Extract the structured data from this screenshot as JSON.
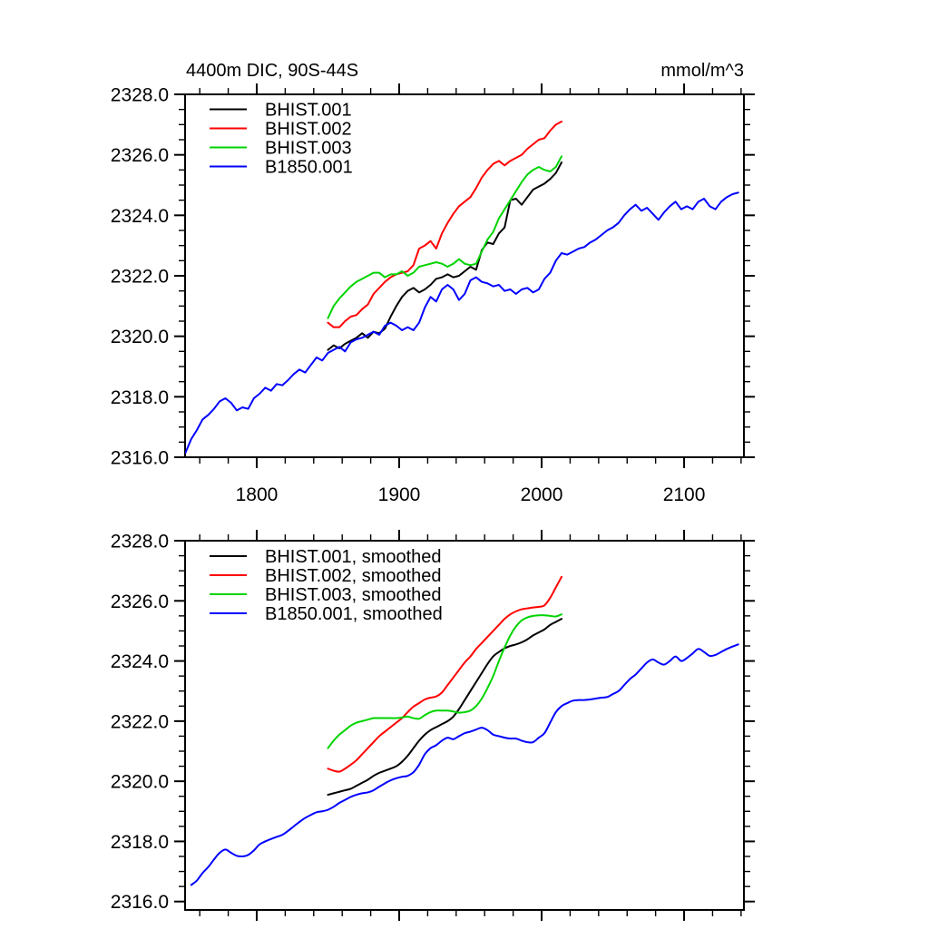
{
  "page": {
    "background": "#ffffff"
  },
  "chart_data": [
    {
      "type": "line",
      "title": "4400m DIC, 90S-44S",
      "units_label": "mmol/m^3",
      "xlim": [
        1749.7,
        2142
      ],
      "ylim": [
        2316,
        2328
      ],
      "x_ticks_major": [
        1800,
        1900,
        2000,
        2100
      ],
      "x_tick_labels": [
        "1800",
        "1900",
        "2000",
        "2100"
      ],
      "x_ticks_minor": [
        1760,
        1780,
        1820,
        1840,
        1860,
        1880,
        1920,
        1940,
        1960,
        1980,
        2020,
        2040,
        2060,
        2080,
        2120,
        2140
      ],
      "y_ticks_major": [
        2316,
        2318,
        2320,
        2322,
        2324,
        2326,
        2328
      ],
      "y_tick_labels": [
        "2316.0",
        "2318.0",
        "2320.0",
        "2322.0",
        "2324.0",
        "2326.0",
        "2328.0"
      ],
      "y_minor_step": 0.5,
      "show_x_labels": true,
      "grid": false,
      "legend_position": "top-left-inside",
      "series": [
        {
          "name": "BHIST.001",
          "color": "#000000",
          "x0": 1850,
          "dx": 4,
          "smooth": false,
          "values": [
            2319.55,
            2319.7,
            2319.6,
            2319.75,
            2319.85,
            2319.95,
            2320.1,
            2319.95,
            2320.15,
            2320.1,
            2320.25,
            2320.65,
            2321.0,
            2321.3,
            2321.5,
            2321.6,
            2321.45,
            2321.55,
            2321.7,
            2321.9,
            2321.95,
            2322.05,
            2321.95,
            2322.0,
            2322.15,
            2322.3,
            2322.2,
            2322.85,
            2323.1,
            2323.05,
            2323.4,
            2323.6,
            2324.5,
            2324.55,
            2324.35,
            2324.6,
            2324.85,
            2324.95,
            2325.05,
            2325.2,
            2325.4,
            2325.75
          ]
        },
        {
          "name": "BHIST.002",
          "color": "#ff0000",
          "x0": 1850,
          "dx": 4,
          "smooth": false,
          "values": [
            2320.45,
            2320.3,
            2320.3,
            2320.5,
            2320.65,
            2320.7,
            2320.9,
            2321.05,
            2321.4,
            2321.6,
            2321.8,
            2321.95,
            2322.05,
            2322.1,
            2322.15,
            2322.35,
            2322.9,
            2323.0,
            2323.15,
            2322.9,
            2323.4,
            2323.75,
            2324.05,
            2324.3,
            2324.45,
            2324.6,
            2324.9,
            2325.25,
            2325.5,
            2325.7,
            2325.8,
            2325.65,
            2325.8,
            2325.9,
            2326.0,
            2326.2,
            2326.35,
            2326.5,
            2326.55,
            2326.8,
            2327.0,
            2327.1
          ]
        },
        {
          "name": "BHIST.003",
          "color": "#00d400",
          "x0": 1850,
          "dx": 4,
          "smooth": false,
          "values": [
            2320.6,
            2321.0,
            2321.25,
            2321.45,
            2321.65,
            2321.8,
            2321.9,
            2322.0,
            2322.1,
            2322.1,
            2321.95,
            2322.05,
            2322.05,
            2322.15,
            2322.0,
            2322.1,
            2322.3,
            2322.35,
            2322.4,
            2322.45,
            2322.4,
            2322.3,
            2322.4,
            2322.55,
            2322.4,
            2322.35,
            2322.4,
            2322.8,
            2323.2,
            2323.45,
            2323.9,
            2324.2,
            2324.5,
            2324.8,
            2325.1,
            2325.35,
            2325.5,
            2325.6,
            2325.5,
            2325.45,
            2325.6,
            2325.95
          ]
        },
        {
          "name": "B1850.001",
          "color": "#0000ff",
          "x0": 1750,
          "dx": 4,
          "smooth": false,
          "values": [
            2316.15,
            2316.6,
            2316.9,
            2317.25,
            2317.4,
            2317.6,
            2317.85,
            2317.95,
            2317.8,
            2317.55,
            2317.65,
            2317.6,
            2317.95,
            2318.1,
            2318.3,
            2318.2,
            2318.42,
            2318.38,
            2318.55,
            2318.75,
            2318.9,
            2318.8,
            2319.05,
            2319.3,
            2319.2,
            2319.45,
            2319.55,
            2319.65,
            2319.5,
            2319.8,
            2319.9,
            2319.95,
            2320.05,
            2320.15,
            2320.05,
            2320.35,
            2320.45,
            2320.35,
            2320.2,
            2320.3,
            2320.2,
            2320.45,
            2320.95,
            2321.3,
            2321.15,
            2321.55,
            2321.7,
            2321.55,
            2321.2,
            2321.4,
            2321.85,
            2321.95,
            2321.8,
            2321.75,
            2321.65,
            2321.7,
            2321.5,
            2321.55,
            2321.4,
            2321.55,
            2321.6,
            2321.45,
            2321.55,
            2321.9,
            2322.1,
            2322.5,
            2322.75,
            2322.7,
            2322.8,
            2322.9,
            2322.95,
            2323.1,
            2323.2,
            2323.35,
            2323.5,
            2323.6,
            2323.75,
            2324.0,
            2324.2,
            2324.35,
            2324.15,
            2324.25,
            2324.05,
            2323.85,
            2324.1,
            2324.3,
            2324.45,
            2324.2,
            2324.3,
            2324.2,
            2324.45,
            2324.55,
            2324.3,
            2324.2,
            2324.45,
            2324.6,
            2324.7,
            2324.75
          ]
        }
      ]
    },
    {
      "type": "line",
      "title": "",
      "units_label": "",
      "xlim": [
        1749.7,
        2142
      ],
      "ylim": [
        2315.72,
        2328
      ],
      "x_ticks_major": [
        1800,
        1900,
        2000,
        2100
      ],
      "x_tick_labels": [],
      "x_ticks_minor": [
        1760,
        1780,
        1820,
        1840,
        1860,
        1880,
        1920,
        1940,
        1960,
        1980,
        2020,
        2040,
        2060,
        2080,
        2120,
        2140
      ],
      "y_ticks_major": [
        2316,
        2318,
        2320,
        2322,
        2324,
        2326,
        2328
      ],
      "y_tick_labels": [
        "2316.0",
        "2318.0",
        "2320.0",
        "2322.0",
        "2324.0",
        "2326.0",
        "2328.0"
      ],
      "y_minor_step": 0.5,
      "show_x_labels": false,
      "grid": false,
      "legend_position": "top-left-inside",
      "series": [
        {
          "name": "BHIST.001, smoothed",
          "color": "#000000",
          "x0": 1850,
          "dx": 4,
          "smooth": true,
          "values": [
            2319.55,
            2319.6,
            2319.65,
            2319.7,
            2319.75,
            2319.85,
            2319.95,
            2320.05,
            2320.18,
            2320.28,
            2320.35,
            2320.42,
            2320.5,
            2320.65,
            2320.85,
            2321.1,
            2321.35,
            2321.55,
            2321.7,
            2321.8,
            2321.9,
            2322.0,
            2322.15,
            2322.4,
            2322.7,
            2323.0,
            2323.3,
            2323.6,
            2323.9,
            2324.15,
            2324.3,
            2324.42,
            2324.5,
            2324.55,
            2324.62,
            2324.72,
            2324.85,
            2324.95,
            2325.05,
            2325.2,
            2325.3,
            2325.4
          ]
        },
        {
          "name": "BHIST.002, smoothed",
          "color": "#ff0000",
          "x0": 1850,
          "dx": 4,
          "smooth": true,
          "values": [
            2320.42,
            2320.35,
            2320.32,
            2320.42,
            2320.55,
            2320.7,
            2320.9,
            2321.1,
            2321.3,
            2321.5,
            2321.65,
            2321.8,
            2321.95,
            2322.1,
            2322.3,
            2322.48,
            2322.6,
            2322.72,
            2322.78,
            2322.82,
            2322.95,
            2323.2,
            2323.45,
            2323.7,
            2323.95,
            2324.15,
            2324.4,
            2324.6,
            2324.8,
            2325.0,
            2325.2,
            2325.4,
            2325.55,
            2325.65,
            2325.72,
            2325.75,
            2325.78,
            2325.8,
            2325.85,
            2326.1,
            2326.45,
            2326.8
          ]
        },
        {
          "name": "BHIST.003, smoothed",
          "color": "#00d400",
          "x0": 1850,
          "dx": 4,
          "smooth": true,
          "values": [
            2321.1,
            2321.35,
            2321.55,
            2321.7,
            2321.85,
            2321.95,
            2322.0,
            2322.05,
            2322.1,
            2322.1,
            2322.1,
            2322.1,
            2322.1,
            2322.12,
            2322.15,
            2322.1,
            2322.08,
            2322.2,
            2322.3,
            2322.35,
            2322.35,
            2322.35,
            2322.32,
            2322.28,
            2322.3,
            2322.35,
            2322.5,
            2322.75,
            2323.1,
            2323.5,
            2324.0,
            2324.45,
            2324.85,
            2325.15,
            2325.35,
            2325.45,
            2325.5,
            2325.52,
            2325.52,
            2325.5,
            2325.48,
            2325.55
          ]
        },
        {
          "name": "B1850.001, smoothed",
          "color": "#0000ff",
          "x0": 1754,
          "dx": 4,
          "smooth": true,
          "values": [
            2316.55,
            2316.7,
            2316.95,
            2317.15,
            2317.4,
            2317.62,
            2317.73,
            2317.62,
            2317.52,
            2317.5,
            2317.55,
            2317.7,
            2317.9,
            2318.0,
            2318.08,
            2318.15,
            2318.22,
            2318.35,
            2318.5,
            2318.65,
            2318.78,
            2318.88,
            2318.97,
            2319.0,
            2319.05,
            2319.15,
            2319.28,
            2319.38,
            2319.48,
            2319.55,
            2319.6,
            2319.63,
            2319.7,
            2319.82,
            2319.93,
            2320.03,
            2320.1,
            2320.15,
            2320.18,
            2320.3,
            2320.55,
            2320.9,
            2321.1,
            2321.2,
            2321.35,
            2321.45,
            2321.4,
            2321.5,
            2321.6,
            2321.65,
            2321.72,
            2321.78,
            2321.7,
            2321.55,
            2321.5,
            2321.45,
            2321.42,
            2321.42,
            2321.35,
            2321.3,
            2321.3,
            2321.45,
            2321.6,
            2321.95,
            2322.3,
            2322.5,
            2322.6,
            2322.68,
            2322.7,
            2322.7,
            2322.72,
            2322.75,
            2322.78,
            2322.8,
            2322.9,
            2323.0,
            2323.2,
            2323.4,
            2323.55,
            2323.75,
            2323.95,
            2324.05,
            2323.95,
            2323.88,
            2324.0,
            2324.15,
            2324.0,
            2324.1,
            2324.25,
            2324.4,
            2324.3,
            2324.17,
            2324.2,
            2324.3,
            2324.4,
            2324.48,
            2324.55
          ]
        }
      ]
    }
  ]
}
